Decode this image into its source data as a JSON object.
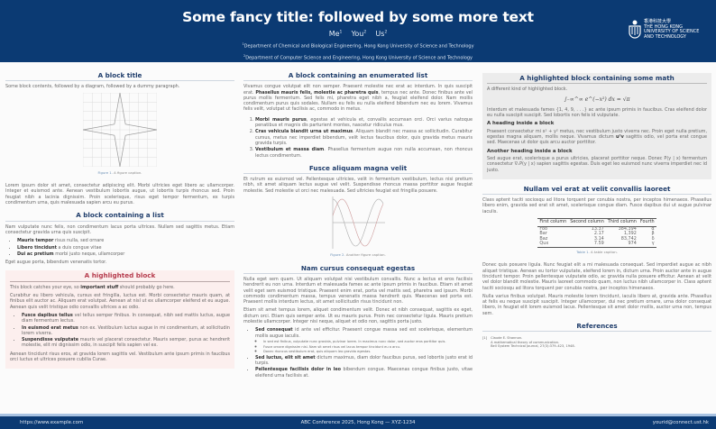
{
  "header": {
    "title": "Some fancy title: followed by some more text",
    "authors": [
      {
        "name": "Me",
        "sup": "1"
      },
      {
        "name": "You",
        "sup": "2"
      },
      {
        "name": "Us",
        "sup": "2"
      }
    ],
    "affiliations": [
      {
        "sup": "1",
        "text": "Department of Chemical and Biological Engineering, Hong Kong University of Science and Technology"
      },
      {
        "sup": "2",
        "text": "Department of Computer Science and Engineering, Hong Kong University of Science and Technology"
      }
    ],
    "logo": {
      "chinese": "香港科技大學",
      "lines": [
        "THE HONG KONG",
        "UNIVERSITY OF SCIENCE",
        "AND TECHNOLOGY"
      ]
    }
  },
  "col1": {
    "block1": {
      "title": "A block title",
      "intro": "Some block contents, followed by a diagram, followed by a dummy paragraph.",
      "fig_label": "Figure 1.",
      "fig_caption": "A figure caption.",
      "para": "Lorem ipsum dolor sit amet, consectetur adipiscing elit. Morbi ultricies eget libero ac ullamcorper. Integer et euismod ante. Aenean vestibulum lobortis augue, ut lobortis turpis rhoncus sed. Proin feugiat nibh a lacinia dignissim. Proin scelerisque, risus eget tempor fermentum, ex turpis condimentum urna, quis malesuada sapien arcu eu purus."
    },
    "block2": {
      "title": "A block containing a list",
      "intro": "Nam vulputate nunc felis, non condimentum lacus porta ultrices. Nullam sed sagittis metus. Etiam consectetur gravida urna quis suscipit.",
      "items": [
        {
          "bold": "Mauris tempor",
          "text": " risus nulla, sed ornare"
        },
        {
          "bold": "Libero tincidunt",
          "text": " a duis congue vitae"
        },
        {
          "bold": "Dui ac pretium",
          "text": " morbi justo neque, ullamcorper"
        }
      ],
      "outro": "Eget augue porta, bibendum venenatis tortor."
    },
    "block3": {
      "title": "A highlighted block",
      "p1a": "This block catches your eye, so ",
      "p1b": "important stuff",
      "p1c": " should probably go here.",
      "p2": "Curabitur eu libero vehicula, cursus est fringilla, luctus est. Morbi consectetur mauris quam, at finibus elit auctor ac. Aliquam erat volutpat. Aenean at nisl ut ex ullamcorper eleifend et eu augue. Aenean quis velit tristique odio convallis ultrices a ac odio.",
      "items": [
        {
          "bold": "Fusce dapibus tellus",
          "text": " vel tellus semper finibus. In consequat, nibh sed mattis luctus, augue diam fermentum lectus."
        },
        {
          "bold": "In euismod erat metus",
          "text": " non ex. Vestibulum luctus augue in mi condimentum, at sollicitudin lorem viverra."
        },
        {
          "bold": "Suspendisse vulputate",
          "text": " mauris vel placerat consectetur. Mauris semper, purus ac hendrerit molestie, elit mi dignissim odio, in suscipit felis sapien vel ex."
        }
      ],
      "p3": "Aenean tincidunt risus eros, at gravida lorem sagittis vel. Vestibulum ante ipsum primis in faucibus orci luctus et ultrices posuere cubilia Curae."
    }
  },
  "col2": {
    "block1": {
      "title": "A block containing an enumerated list",
      "p_a": "Vivamus congue volutpat elit non semper. Praesent molestie nec erat ac interdum. In quis suscipit erat. ",
      "p_b": "Phasellus mauris felis, molestie ac pharetra quis",
      "p_c": ", tempus nec ante. Donec finibus ante vel purus mollis fermentum. Sed felis mi, pharetra eget nibh a, feugiat eleifend dolor. Nam mollis condimentum purus quis sodales. Nullam eu felis eu nulla eleifend bibendum nec eu lorem. Vivamus felis velit, volutpat ut facilisis ac, commodo in metus.",
      "items": [
        {
          "bold": "Morbi mauris purus",
          "text": ", egestas at vehicula et, convallis accumsan orci. Orci varius natoque penatibus et magnis dis parturient montes, nascetur ridiculus mus."
        },
        {
          "bold": "Cras vehicula blandit urna ut maximus",
          "text": ". Aliquam blandit nec massa ac sollicitudin. Curabitur cursus, metus nec imperdiet bibendum, velit lectus faucibus dolor, quis gravida metus mauris gravida turpis."
        },
        {
          "bold": "Vestibulum et massa diam",
          "text": ". Phasellus fermentum augue non nulla accumsan, non rhoncus lectus condimentum."
        }
      ]
    },
    "block2": {
      "title": "Fusce aliquam magna velit",
      "para": "Et rutrum ex euismod vel. Pellentesque ultricies, velit in fermentum vestibulum, lectus nisi pretium nibh, sit amet aliquam lectus augue vel velit. Suspendisse rhoncus massa porttitor augue feugiat molestie. Sed molestie ut orci nec malesuada. Sed ultricies feugiat est fringilla posuere.",
      "fig_label": "Figure 2.",
      "fig_caption": "Another figure caption."
    },
    "block3": {
      "title": "Nam cursus consequat egestas",
      "p1": "Nulla eget sem quam. Ut aliquam volutpat nisi vestibulum convallis. Nunc a lectus et eros facilisis hendrerit eu non urna. Interdum et malesuada fames ac ante ipsum primis in faucibus. Etiam sit amet velit eget sem euismod tristique. Praesent enim erat, porta vel mattis sed, pharetra sed ipsum. Morbi commodo condimentum massa, tempus venenatis massa hendrerit quis. Maecenas sed porta est. Praesent mollis interdum lectus, sit amet sollicitudin risus tincidunt non.",
      "p2": "Etiam sit amet tempus lorem, aliquet condimentum velit. Donec et nibh consequat, sagittis ex eget, dictum orci. Etiam quis semper ante. Ut eu mauris purus. Proin nec consectetur ligula. Mauris pretium molestie ullamcorper. Integer nisi neque, aliquet et odio non, sagittis porta justo.",
      "item1": {
        "bold": "Sed consequat",
        "text": " id ante vel efficitur. Praesent congue massa sed est scelerisque, elementum mollis augue iaculis."
      },
      "subitems": [
        "In sed est finibus, vulputate nunc gravida, pulvinar lorem. In maximus nunc dolor, sed auctor eros porttitor quis.",
        "Fusce ornare dignissim nisi. Nam sit amet risus vel lacus tempor tincidunt eu a arcu.",
        "Donec rhoncus vestibulum erat, quis aliquam leo gravida egestas."
      ],
      "item2": {
        "bold": "Sed luctus, elit sit amet",
        "text": " dictum maximus, diam dolor faucibus purus, sed lobortis justo erat id turpis."
      },
      "item3": {
        "bold": "Pellentesque facilisis dolor in leo",
        "text": " bibendum congue. Maecenas congue finibus justo, vitae eleifend urna facilisis at."
      }
    }
  },
  "col3": {
    "block1": {
      "title": "A highlighted block containing some math",
      "intro": "A different kind of highlighted block.",
      "math": "∫₋∞^∞ e^(−x²) dx = √π",
      "p1": "Interdum et malesuada fames {1, 4, 9, . . .} ac ante ipsum primis in faucibus. Cras eleifend dolor eu nulla suscipit suscipit. Sed lobortis non felis id vulputate.",
      "h1": "A heading inside a block",
      "p2a": "Praesent consectetur mi x² + y² metus, nec vestibulum justo viverra nec. Proin eget nulla pretium, egestas magna aliquam, mollis neque. Vivamus dictum ",
      "p2b": "uᵀv",
      "p2c": " sagittis odio, vel porta erat congue sed. Maecenas ut dolor quis arcu auctor porttitor.",
      "h2": "Another heading inside a block",
      "p3": "Sed augue erat, scelerisque a purus ultricies, placerat porttitor neque. Donec P(y | x) fermentum consectetur ∇ₓP(y | x) sapien sagittis egestas. Duis eget leo euismod nunc viverra imperdiet nec id justo."
    },
    "block2": {
      "title": "Nullam vel erat at velit convallis laoreet",
      "p1": "Class aptent taciti sociosqu ad litora torquent per conubia nostra, per inceptos himenaeos. Phasellus libero enim, gravida sed erat sit amet, scelerisque congue diam. Fusce dapibus dui ut augue pulvinar iaculis.",
      "table": {
        "headers": [
          "First column",
          "Second column",
          "Third column",
          "Fourth"
        ],
        "rows": [
          [
            "Foo",
            "13.37",
            "384,394",
            "α"
          ],
          [
            "Bar",
            "2.17",
            "1,392",
            "β"
          ],
          [
            "Baz",
            "3.14",
            "83,742",
            "δ"
          ],
          [
            "Qux",
            "7.59",
            "974",
            "γ"
          ]
        ]
      },
      "table_label": "Table 1.",
      "table_caption": "A table caption.",
      "p2": "Donec quis posuere ligula. Nunc feugiat elit a mi malesuada consequat. Sed imperdiet augue ac nibh aliquet tristique. Aenean eu tortor vulputate, eleifend lorem in, dictum urna. Proin auctor ante in augue tincidunt tempor. Proin pellentesque vulputate odio, ac gravida nulla posuere efficitur. Aenean at velit vel dolor blandit molestie. Mauris laoreet commodo quam, non luctus nibh ullamcorper in. Class aptent taciti sociosqu ad litora torquent per conubia nostra, per inceptos himenaeos.",
      "p3": "Nulla varius finibus volutpat. Mauris molestie lorem tincidunt, iaculis libero at, gravida ante. Phasellus at felis eu neque suscipit suscipit. Integer ullamcorper, dui nec pretium ornare, urna dolor consequat libero, in feugiat elit lorem euismod lacus. Pellentesque sit amet dolor mollis, auctor urna non, tempus sem."
    },
    "refs": {
      "title": "References",
      "items": [
        {
          "num": "[1]",
          "lines": [
            "Claude E. Shannon.",
            "A mathematical theory of communication.",
            "Bell System Technical Journal, 27(3):379–423, 1948."
          ]
        }
      ]
    }
  },
  "footer": {
    "left": "https://www.example.com",
    "center": "ABC Conference 2025, Hong Kong — XYZ-1234",
    "right": "yourid@connect.ust.hk"
  },
  "colors": {
    "header_bg": "#0b3a73",
    "block_title": "#1f3d6b",
    "highlight_title": "#b63b4c",
    "highlight_bg": "#fcefee",
    "math_block_bg": "#ececec"
  }
}
